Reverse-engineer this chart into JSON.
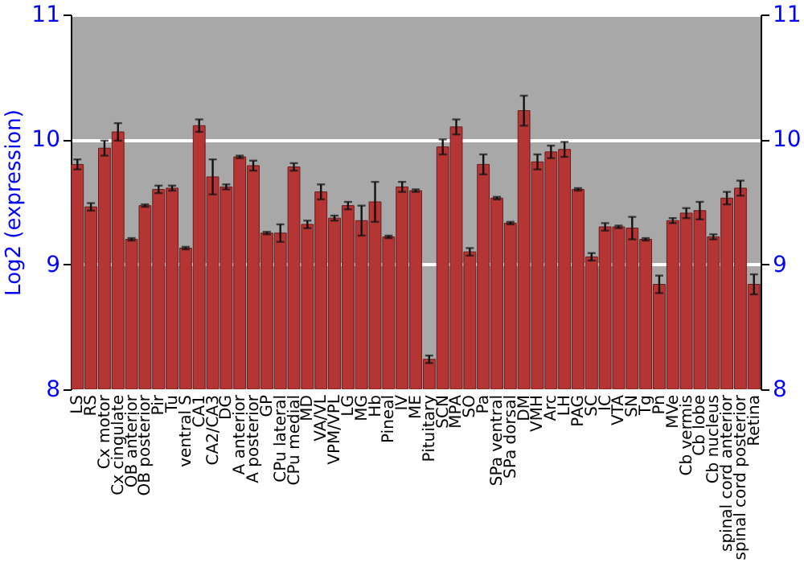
{
  "chart_data": {
    "type": "bar",
    "ylabel": "Log2 (expression)",
    "categories": [
      "LS",
      "RS",
      "Cx motor",
      "Cx cingulate",
      "OB anterior",
      "OB posterior",
      "Pir",
      "Tu",
      "ventral S",
      "CA1",
      "CA2/CA3",
      "DG",
      "A anterior",
      "A posterior",
      "GP",
      "CPu lateral",
      "CPu medial",
      "MD",
      "VA/VL",
      "VPM/VPL",
      "LG",
      "MG",
      "Hb",
      "Pineal",
      "IV",
      "ME",
      "Pituitary",
      "SCN",
      "MPA",
      "SO",
      "Pa",
      "SPa ventral",
      "SPa dorsal",
      "DM",
      "VMH",
      "Arc",
      "LH",
      "PAG",
      "SC",
      "IC",
      "VTA",
      "SN",
      "Tg",
      "Pn",
      "MVe",
      "Cb vermis",
      "Cb lobe",
      "Cb nucleus",
      "spinal cord anterior",
      "spinal cord posterior",
      "Retina"
    ],
    "values": [
      9.8,
      9.46,
      9.93,
      10.06,
      9.2,
      9.47,
      9.6,
      9.61,
      9.13,
      10.11,
      9.7,
      9.62,
      9.86,
      9.79,
      9.25,
      9.25,
      9.78,
      9.32,
      9.58,
      9.37,
      9.47,
      9.35,
      9.5,
      9.22,
      9.62,
      9.59,
      8.24,
      9.94,
      10.1,
      9.1,
      9.8,
      9.53,
      9.33,
      10.23,
      9.82,
      9.9,
      9.92,
      9.6,
      9.06,
      9.3,
      9.3,
      9.29,
      9.2,
      8.84,
      9.35,
      9.41,
      9.43,
      9.22,
      9.53,
      9.61,
      8.84
    ],
    "errors": [
      0.04,
      0.03,
      0.06,
      0.07,
      0.01,
      0.01,
      0.03,
      0.02,
      0.01,
      0.05,
      0.14,
      0.02,
      0.01,
      0.04,
      0.01,
      0.07,
      0.03,
      0.03,
      0.06,
      0.02,
      0.03,
      0.12,
      0.16,
      0.01,
      0.04,
      0.01,
      0.03,
      0.06,
      0.06,
      0.03,
      0.08,
      0.01,
      0.01,
      0.12,
      0.06,
      0.05,
      0.06,
      0.01,
      0.03,
      0.03,
      0.01,
      0.09,
      0.01,
      0.07,
      0.02,
      0.04,
      0.07,
      0.02,
      0.05,
      0.06,
      0.08
    ],
    "color": "#b53535",
    "ylim": [
      8,
      11
    ],
    "yticks": [
      8,
      9,
      10,
      11
    ],
    "y2lim": [
      8,
      11
    ],
    "y2ticks": [
      8,
      9,
      10,
      11
    ],
    "grid": "y"
  }
}
